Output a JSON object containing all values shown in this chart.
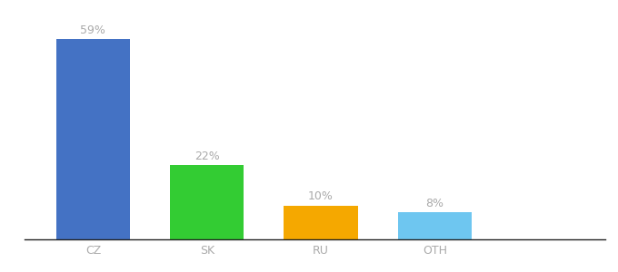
{
  "categories": [
    "CZ",
    "SK",
    "RU",
    "OTH"
  ],
  "values": [
    59,
    22,
    10,
    8
  ],
  "labels": [
    "59%",
    "22%",
    "10%",
    "8%"
  ],
  "bar_colors": [
    "#4472c4",
    "#33cc33",
    "#f5a800",
    "#6ec6f0"
  ],
  "background_color": "#ffffff",
  "ylim": [
    0,
    68
  ],
  "label_fontsize": 9,
  "tick_fontsize": 9,
  "label_color": "#aaaaaa",
  "tick_color": "#aaaaaa",
  "bar_width": 0.65,
  "figsize": [
    6.8,
    3.0
  ],
  "dpi": 100
}
